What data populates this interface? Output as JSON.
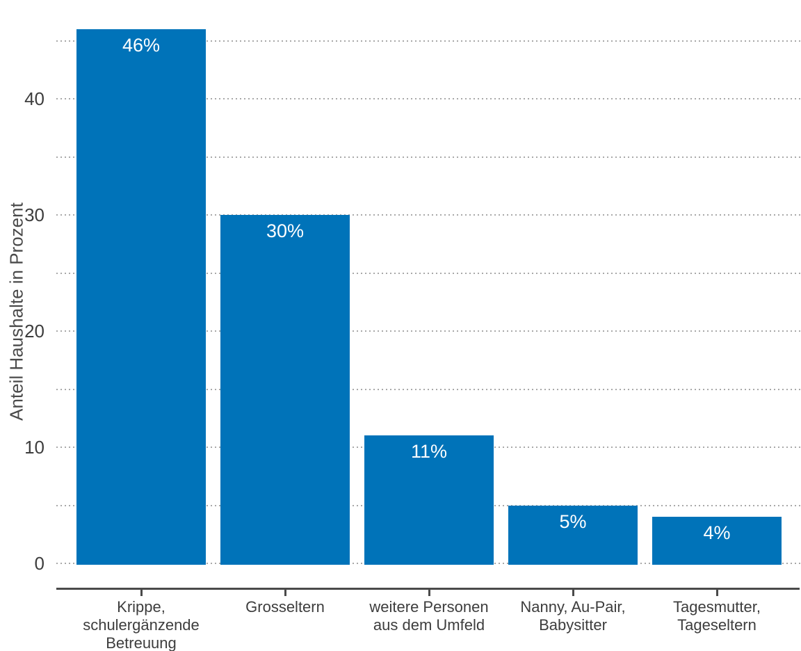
{
  "chart_data": {
    "type": "bar",
    "title": "",
    "xlabel": "",
    "ylabel": "Anteil Haushalte in Prozent",
    "categories": [
      "Krippe,\nschulergänzende\nBetreuung",
      "Grosseltern",
      "weitere Personen\naus dem Umfeld",
      "Nanny, Au-Pair,\nBabysitter",
      "Tagesmutter,\nTageseltern"
    ],
    "values": [
      46,
      30,
      11,
      5,
      4
    ],
    "bar_labels": [
      "46%",
      "30%",
      "11%",
      "5%",
      "4%"
    ],
    "yticks": [
      0,
      10,
      20,
      30,
      40
    ],
    "gridline_values": [
      0,
      5,
      10,
      15,
      20,
      25,
      30,
      35,
      40,
      45
    ],
    "ylim": [
      0,
      47
    ],
    "grid_style": "dotted horizontal",
    "legend": "none",
    "bar_label_position": "inside-top",
    "colors": {
      "bar": "#0073b9",
      "bar_label_text": "#ffffff",
      "axis_line": "#4a4a4a",
      "tick_text": "#3d3d3d",
      "grid_line": "#a8a8a8",
      "background": "#ffffff"
    }
  }
}
